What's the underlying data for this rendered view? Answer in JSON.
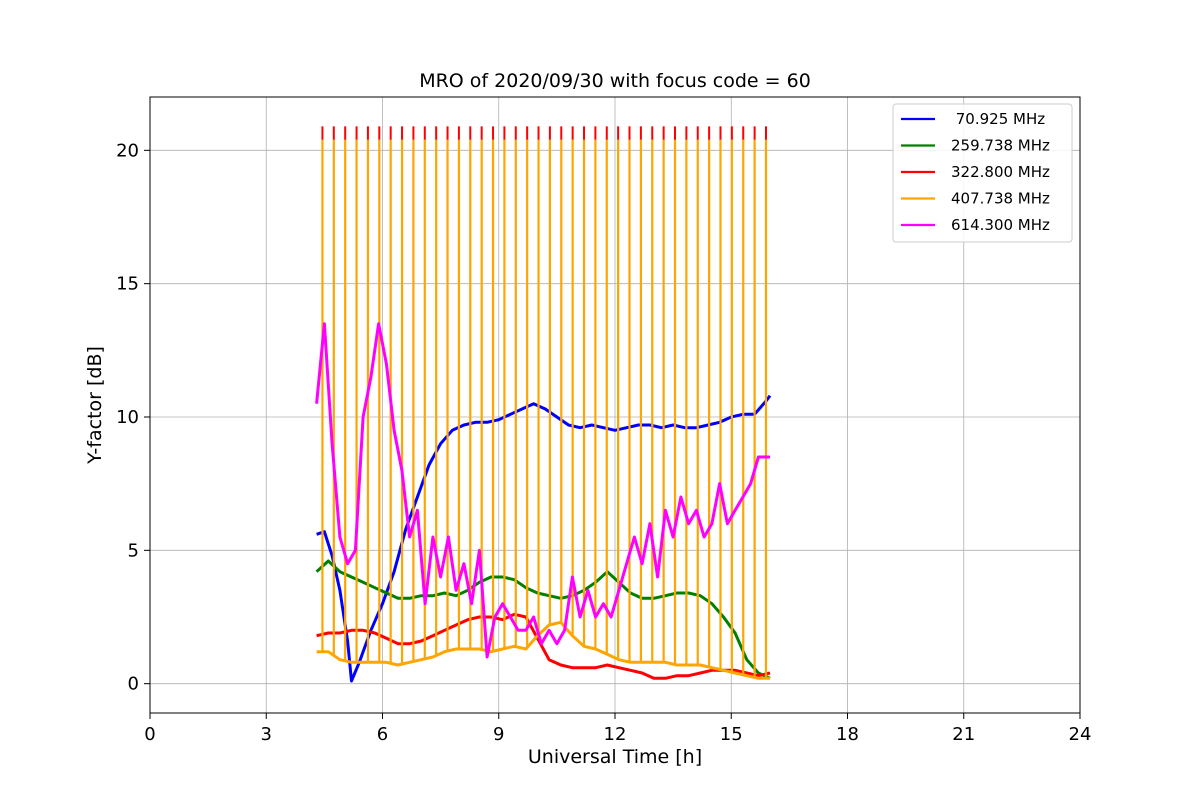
{
  "chart_data": {
    "type": "line",
    "title": "MRO of 2020/09/30 with focus code = 60",
    "xlabel": "Universal Time [h]",
    "ylabel": "Y-factor [dB]",
    "xlim": [
      0,
      24
    ],
    "ylim": [
      -1.1,
      22
    ],
    "xticks": [
      0,
      3,
      6,
      9,
      12,
      15,
      18,
      21,
      24
    ],
    "yticks": [
      0,
      5,
      10,
      15,
      20
    ],
    "grid": true,
    "legend_position": "top-right",
    "series": [
      {
        "name": " 70.925 MHz",
        "color": "#0000ff",
        "x": [
          4.3,
          4.5,
          4.7,
          4.9,
          5.1,
          5.2,
          5.4,
          5.7,
          6.0,
          6.3,
          6.6,
          6.9,
          7.2,
          7.5,
          7.8,
          8.1,
          8.4,
          8.7,
          9.0,
          9.3,
          9.6,
          9.9,
          10.2,
          10.5,
          10.8,
          11.1,
          11.4,
          11.7,
          12.0,
          12.3,
          12.6,
          12.9,
          13.2,
          13.5,
          13.8,
          14.1,
          14.4,
          14.7,
          15.0,
          15.3,
          15.6,
          15.9,
          16.0
        ],
        "y": [
          5.6,
          5.7,
          4.8,
          3.5,
          1.6,
          0.1,
          0.8,
          2.0,
          3.0,
          4.2,
          5.8,
          7.0,
          8.2,
          9.0,
          9.5,
          9.7,
          9.8,
          9.8,
          9.9,
          10.1,
          10.3,
          10.5,
          10.3,
          10.0,
          9.7,
          9.6,
          9.7,
          9.6,
          9.5,
          9.6,
          9.7,
          9.7,
          9.6,
          9.7,
          9.6,
          9.6,
          9.7,
          9.8,
          10.0,
          10.1,
          10.1,
          10.6,
          10.8
        ]
      },
      {
        "name": "259.738 MHz",
        "color": "#008000",
        "x": [
          4.3,
          4.6,
          4.9,
          5.2,
          5.5,
          5.8,
          6.1,
          6.4,
          6.7,
          7.0,
          7.3,
          7.6,
          7.9,
          8.2,
          8.5,
          8.8,
          9.1,
          9.4,
          9.7,
          10.0,
          10.3,
          10.6,
          10.9,
          11.2,
          11.5,
          11.8,
          12.1,
          12.4,
          12.7,
          13.0,
          13.3,
          13.6,
          13.9,
          14.2,
          14.5,
          14.8,
          15.1,
          15.4,
          15.7,
          16.0
        ],
        "y": [
          4.2,
          4.6,
          4.2,
          4.0,
          3.8,
          3.6,
          3.4,
          3.2,
          3.2,
          3.3,
          3.3,
          3.4,
          3.3,
          3.5,
          3.8,
          4.0,
          4.0,
          3.9,
          3.6,
          3.4,
          3.3,
          3.2,
          3.3,
          3.5,
          3.8,
          4.2,
          3.8,
          3.4,
          3.2,
          3.2,
          3.3,
          3.4,
          3.4,
          3.3,
          3.0,
          2.5,
          1.9,
          0.9,
          0.4,
          0.2
        ]
      },
      {
        "name": "322.800 MHz",
        "color": "#ff0000",
        "x": [
          4.3,
          4.6,
          4.9,
          5.2,
          5.5,
          5.8,
          6.1,
          6.4,
          6.7,
          7.0,
          7.3,
          7.6,
          7.9,
          8.2,
          8.5,
          8.8,
          9.1,
          9.4,
          9.7,
          10.0,
          10.3,
          10.6,
          10.9,
          11.2,
          11.5,
          11.8,
          12.1,
          12.4,
          12.7,
          13.0,
          13.3,
          13.6,
          13.9,
          14.2,
          14.5,
          14.8,
          15.1,
          15.4,
          15.7,
          16.0
        ],
        "y": [
          1.8,
          1.9,
          1.9,
          2.0,
          2.0,
          1.9,
          1.7,
          1.5,
          1.5,
          1.6,
          1.8,
          2.0,
          2.2,
          2.4,
          2.5,
          2.5,
          2.4,
          2.6,
          2.5,
          1.7,
          0.9,
          0.7,
          0.6,
          0.6,
          0.6,
          0.7,
          0.6,
          0.5,
          0.4,
          0.2,
          0.2,
          0.3,
          0.3,
          0.4,
          0.5,
          0.5,
          0.5,
          0.4,
          0.3,
          0.4
        ]
      },
      {
        "name": "407.738 MHz",
        "color": "#ffa500",
        "x": [
          4.3,
          4.6,
          4.9,
          5.2,
          5.5,
          5.8,
          6.1,
          6.4,
          6.7,
          7.0,
          7.3,
          7.6,
          7.9,
          8.2,
          8.5,
          8.8,
          9.1,
          9.4,
          9.7,
          10.0,
          10.3,
          10.6,
          10.9,
          11.2,
          11.5,
          11.8,
          12.1,
          12.4,
          12.7,
          13.0,
          13.3,
          13.6,
          13.9,
          14.2,
          14.5,
          14.8,
          15.1,
          15.4,
          15.7,
          16.0
        ],
        "y": [
          1.2,
          1.2,
          0.9,
          0.8,
          0.8,
          0.8,
          0.8,
          0.7,
          0.8,
          0.9,
          1.0,
          1.2,
          1.3,
          1.3,
          1.3,
          1.2,
          1.3,
          1.4,
          1.3,
          1.8,
          2.2,
          2.3,
          1.8,
          1.4,
          1.3,
          1.1,
          0.9,
          0.8,
          0.8,
          0.8,
          0.8,
          0.7,
          0.7,
          0.7,
          0.6,
          0.5,
          0.4,
          0.3,
          0.2,
          0.2
        ],
        "cal_pulses": {
          "start": 4.45,
          "step": 0.2935,
          "count": 40,
          "peak": 20.4
        }
      },
      {
        "name": "614.300 MHz",
        "color": "#ff00ff",
        "x": [
          4.3,
          4.5,
          4.7,
          4.9,
          5.1,
          5.3,
          5.5,
          5.7,
          5.9,
          6.1,
          6.3,
          6.5,
          6.7,
          6.9,
          7.1,
          7.3,
          7.5,
          7.7,
          7.9,
          8.1,
          8.3,
          8.5,
          8.7,
          8.9,
          9.1,
          9.3,
          9.5,
          9.7,
          9.9,
          10.1,
          10.3,
          10.5,
          10.7,
          10.9,
          11.1,
          11.3,
          11.5,
          11.7,
          11.9,
          12.1,
          12.3,
          12.5,
          12.7,
          12.9,
          13.1,
          13.3,
          13.5,
          13.7,
          13.9,
          14.1,
          14.3,
          14.5,
          14.7,
          14.9,
          15.1,
          15.3,
          15.5,
          15.7,
          15.9,
          16.0
        ],
        "y": [
          10.5,
          13.5,
          9.0,
          5.5,
          4.5,
          5.0,
          10.0,
          11.5,
          13.5,
          12.0,
          9.5,
          8.0,
          5.5,
          6.5,
          3.0,
          5.5,
          4.0,
          5.5,
          3.5,
          4.5,
          3.0,
          5.0,
          1.0,
          2.5,
          3.0,
          2.5,
          2.0,
          2.0,
          2.5,
          1.5,
          2.0,
          1.5,
          2.0,
          4.0,
          2.5,
          3.5,
          2.5,
          3.0,
          2.5,
          3.5,
          4.5,
          5.5,
          4.5,
          6.0,
          4.0,
          6.5,
          5.5,
          7.0,
          6.0,
          6.5,
          5.5,
          6.0,
          7.5,
          6.0,
          6.5,
          7.0,
          7.5,
          8.5,
          8.5,
          8.5
        ]
      }
    ]
  }
}
